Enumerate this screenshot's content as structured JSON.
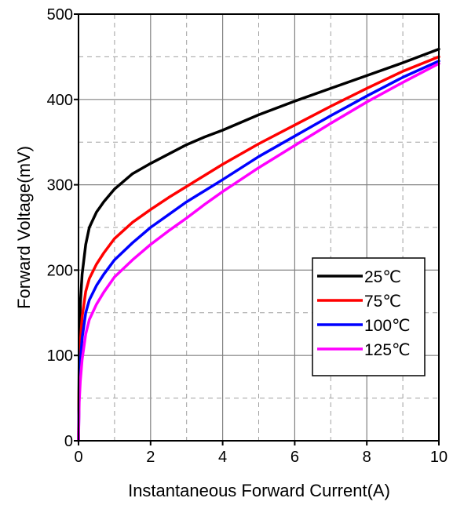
{
  "chart_data": {
    "type": "line",
    "title": "",
    "xlabel": "Instantaneous Forward Current(A)",
    "ylabel": "Forward Voltage(mV)",
    "xlim": [
      0,
      10
    ],
    "ylim": [
      0,
      500
    ],
    "x_ticks": [
      0,
      2,
      4,
      6,
      8,
      10
    ],
    "y_ticks": [
      0,
      100,
      200,
      300,
      400,
      500
    ],
    "x_tick_labels": [
      "0",
      "2",
      "4",
      "6",
      "8",
      "10"
    ],
    "y_tick_labels": [
      "0",
      "100",
      "200",
      "300",
      "400",
      "500"
    ],
    "grid": {
      "major": "solid",
      "minor": "dashed",
      "x_minor_step": 1,
      "y_minor_step": 50
    },
    "legend": {
      "position": "center-right",
      "entries": [
        "25℃",
        "75℃",
        "100℃",
        "125℃"
      ]
    },
    "series": [
      {
        "name": "25℃",
        "color": "#000000",
        "x": [
          0.0,
          0.02,
          0.05,
          0.1,
          0.2,
          0.3,
          0.5,
          0.7,
          1.0,
          1.5,
          2.0,
          2.5,
          3.0,
          3.5,
          4.0,
          5.0,
          6.0,
          7.0,
          8.0,
          9.0,
          10.0
        ],
        "y": [
          0,
          110,
          160,
          195,
          230,
          250,
          268,
          280,
          295,
          313,
          325,
          336,
          347,
          356,
          364,
          382,
          398,
          413,
          428,
          443,
          459
        ]
      },
      {
        "name": "75℃",
        "color": "#ff0000",
        "x": [
          0.0,
          0.02,
          0.05,
          0.1,
          0.2,
          0.3,
          0.5,
          0.7,
          1.0,
          1.5,
          2.0,
          2.5,
          3.0,
          3.5,
          4.0,
          5.0,
          6.0,
          7.0,
          8.0,
          9.0,
          10.0
        ],
        "y": [
          0,
          80,
          115,
          145,
          175,
          190,
          207,
          220,
          237,
          256,
          271,
          285,
          298,
          311,
          324,
          348,
          370,
          392,
          413,
          433,
          450
        ]
      },
      {
        "name": "100℃",
        "color": "#0000ff",
        "x": [
          0.0,
          0.02,
          0.05,
          0.1,
          0.2,
          0.3,
          0.5,
          0.7,
          1.0,
          1.5,
          2.0,
          2.5,
          3.0,
          3.5,
          4.0,
          5.0,
          6.0,
          7.0,
          8.0,
          9.0,
          10.0
        ],
        "y": [
          0,
          60,
          92,
          120,
          150,
          165,
          182,
          195,
          212,
          232,
          250,
          265,
          280,
          293,
          306,
          333,
          357,
          381,
          404,
          426,
          445
        ]
      },
      {
        "name": "125℃",
        "color": "#ff00ff",
        "x": [
          0.0,
          0.02,
          0.05,
          0.1,
          0.2,
          0.3,
          0.5,
          0.7,
          1.0,
          1.5,
          2.0,
          2.5,
          3.0,
          3.5,
          4.0,
          5.0,
          6.0,
          7.0,
          8.0,
          9.0,
          10.0
        ],
        "y": [
          0,
          45,
          70,
          95,
          125,
          142,
          160,
          174,
          192,
          212,
          230,
          246,
          261,
          277,
          292,
          320,
          346,
          372,
          397,
          420,
          442
        ]
      }
    ]
  }
}
